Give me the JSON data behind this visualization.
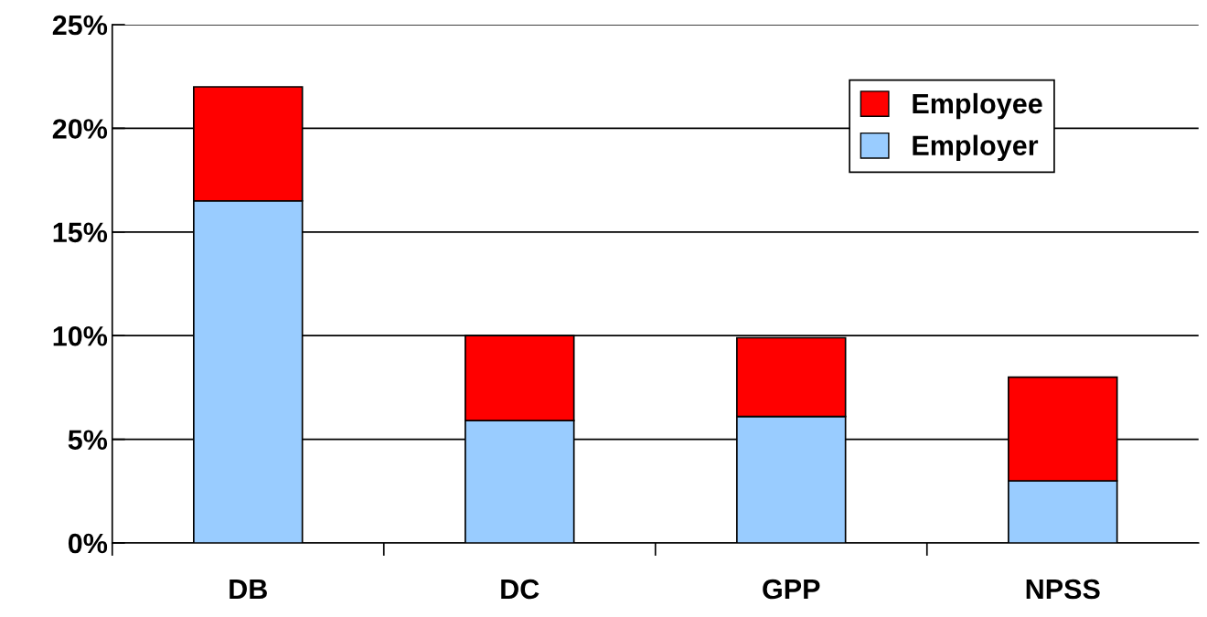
{
  "chart_data": {
    "type": "bar",
    "stacked": true,
    "categories": [
      "DB",
      "DC",
      "GPP",
      "NPSS"
    ],
    "series": [
      {
        "name": "Employer",
        "color": "#99ccff",
        "values": [
          16.5,
          5.9,
          6.1,
          3.0
        ]
      },
      {
        "name": "Employee",
        "color": "#ff0000",
        "values": [
          5.5,
          4.1,
          3.8,
          5.0
        ]
      }
    ],
    "ylim": [
      0,
      25
    ],
    "yticks": [
      {
        "value": 0,
        "label": "0%"
      },
      {
        "value": 5,
        "label": "5%"
      },
      {
        "value": 10,
        "label": "10%"
      },
      {
        "value": 15,
        "label": "15%"
      },
      {
        "value": 20,
        "label": "20%"
      },
      {
        "value": 25,
        "label": "25%"
      }
    ],
    "grid": "y",
    "legend": "top right"
  }
}
